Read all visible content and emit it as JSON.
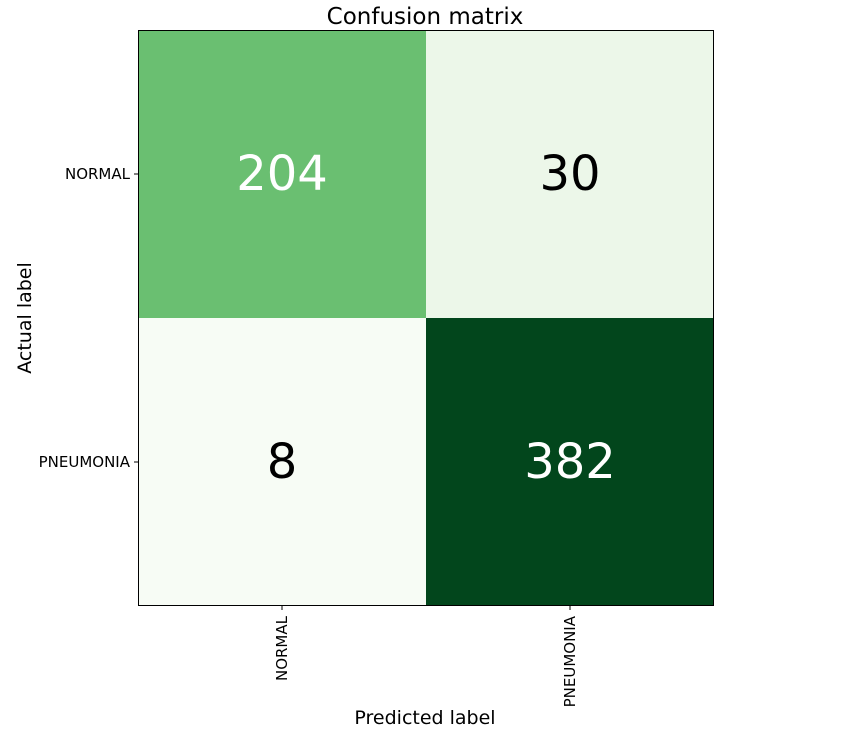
{
  "chart_data": {
    "type": "heatmap",
    "title": "Confusion matrix",
    "xlabel": "Predicted label",
    "ylabel": "Actual label",
    "x_categories": [
      "NORMAL",
      "PNEUMONIA"
    ],
    "y_categories": [
      "NORMAL",
      "PNEUMONIA"
    ],
    "values": [
      [
        204,
        30
      ],
      [
        8,
        382
      ]
    ],
    "colormap": "Greens",
    "cell_colors": [
      [
        "#6abf71",
        "#ecf7e9"
      ],
      [
        "#f7fcf5",
        "#02461c"
      ]
    ],
    "text_colors": [
      [
        "#ffffff",
        "#000000"
      ],
      [
        "#000000",
        "#ffffff"
      ]
    ],
    "colorbar": false,
    "grid": false
  }
}
